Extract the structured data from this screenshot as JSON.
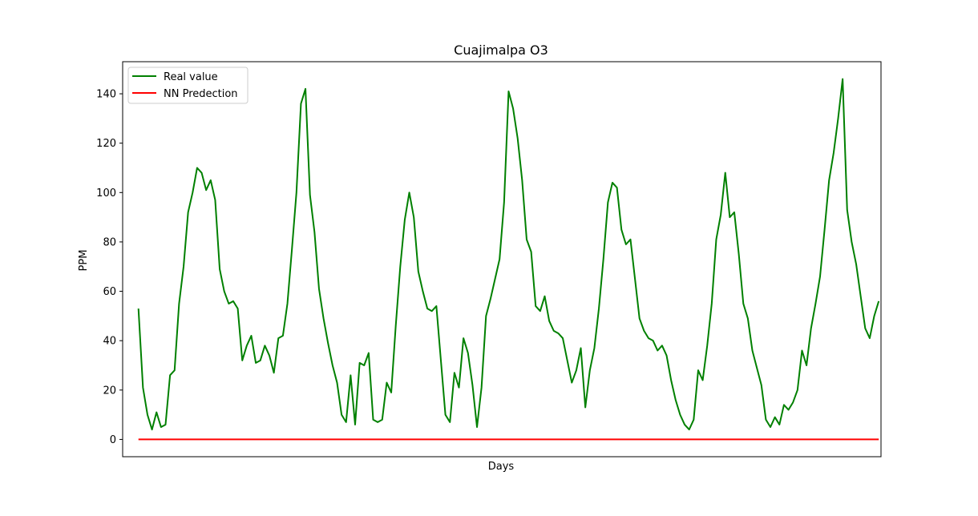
{
  "chart_data": {
    "type": "line",
    "title": "Cuajimalpa O3",
    "xlabel": "Days",
    "ylabel": "PPM",
    "ylim": [
      -7,
      153
    ],
    "xlim": [
      -3.5,
      164.5
    ],
    "y_ticks": [
      0,
      20,
      40,
      60,
      80,
      100,
      120,
      140
    ],
    "y_tick_labels": [
      "0",
      "20",
      "40",
      "60",
      "80",
      "100",
      "120",
      "140"
    ],
    "grid": false,
    "legend_position": "top-left",
    "series": [
      {
        "name": "Real value",
        "color": "#008000",
        "values": [
          53,
          21,
          10,
          4,
          11,
          5,
          6,
          26,
          28,
          55,
          70,
          92,
          100,
          110,
          108,
          101,
          105,
          97,
          69,
          60,
          55,
          56,
          53,
          32,
          38,
          42,
          31,
          32,
          38,
          34,
          27,
          41,
          42,
          55,
          77,
          100,
          136,
          142,
          99,
          84,
          61,
          49,
          39,
          30,
          23,
          10,
          7,
          26,
          6,
          31,
          30,
          35,
          8,
          7,
          8,
          23,
          19,
          46,
          70,
          89,
          100,
          90,
          68,
          60,
          53,
          52,
          54,
          32,
          10,
          7,
          27,
          21,
          41,
          35,
          22,
          5,
          21,
          50,
          57,
          65,
          73,
          96,
          141,
          134,
          122,
          105,
          81,
          76,
          54,
          52,
          58,
          48,
          44,
          43,
          41,
          32,
          23,
          28,
          37,
          13,
          28,
          37,
          53,
          73,
          96,
          104,
          102,
          85,
          79,
          81,
          65,
          49,
          44,
          41,
          40,
          36,
          38,
          34,
          24,
          16,
          10,
          6,
          4,
          8,
          28,
          24,
          38,
          55,
          81,
          91,
          108,
          90,
          92,
          75,
          55,
          49,
          36,
          29,
          22,
          8,
          5,
          9,
          6,
          14,
          12,
          15,
          20,
          36,
          30,
          45,
          55,
          66,
          85,
          105,
          116,
          130,
          146,
          93,
          80,
          71,
          58,
          45,
          41,
          50,
          56
        ]
      },
      {
        "name": "NN Predection",
        "color": "#ff0000",
        "values": [
          0,
          0
        ]
      }
    ]
  }
}
